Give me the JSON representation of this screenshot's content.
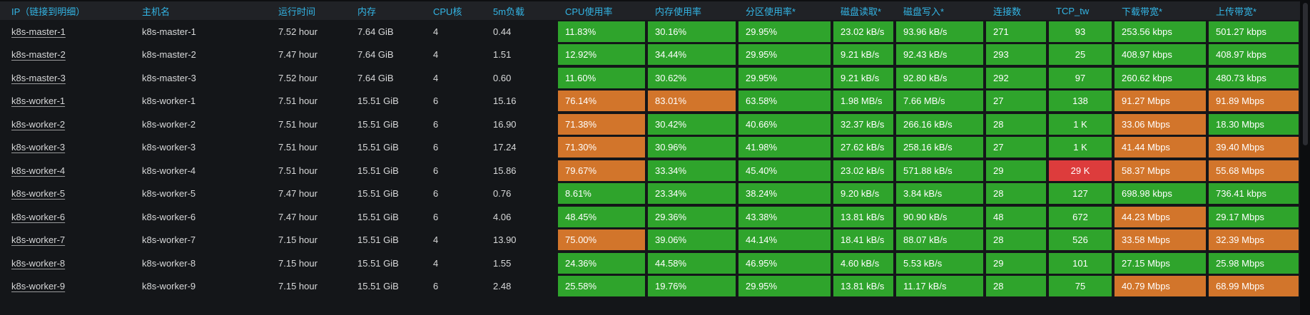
{
  "colors": {
    "green": "#2fa42c",
    "orange": "#d2752b",
    "red": "#dd3c3c",
    "header_text": "#33b5e5",
    "row_bg": "#141619",
    "header_bg": "#202226",
    "cell_text": "#d8d9da",
    "chip_text": "#ffffff"
  },
  "panel": {
    "columns": [
      {
        "key": "ip",
        "label": "IP（链接到明细）",
        "type": "link"
      },
      {
        "key": "hostname",
        "label": "主机名",
        "type": "text"
      },
      {
        "key": "uptime",
        "label": "运行时间",
        "type": "text"
      },
      {
        "key": "memory",
        "label": "内存",
        "type": "text"
      },
      {
        "key": "cpu_cores",
        "label": "CPU核",
        "type": "text"
      },
      {
        "key": "load_5m",
        "label": "5m负载",
        "type": "text"
      },
      {
        "key": "cpu_usage",
        "label": "CPU使用率",
        "type": "chip"
      },
      {
        "key": "mem_usage",
        "label": "内存使用率",
        "type": "chip"
      },
      {
        "key": "partition_usage",
        "label": "分区使用率*",
        "type": "chip"
      },
      {
        "key": "disk_read",
        "label": "磁盘读取*",
        "type": "chip"
      },
      {
        "key": "disk_write",
        "label": "磁盘写入*",
        "type": "chip"
      },
      {
        "key": "connections",
        "label": "连接数",
        "type": "chip"
      },
      {
        "key": "tcp_tw",
        "label": "TCP_tw",
        "type": "chip",
        "align": "center"
      },
      {
        "key": "download_bw",
        "label": "下载带宽*",
        "type": "chip"
      },
      {
        "key": "upload_bw",
        "label": "上传带宽*",
        "type": "chip"
      }
    ],
    "rows": [
      {
        "ip": "k8s-master-1",
        "hostname": "k8s-master-1",
        "uptime": "7.52 hour",
        "memory": "7.64 GiB",
        "cpu_cores": "4",
        "load_5m": "0.44",
        "cpu_usage": {
          "v": "11.83%",
          "c": "green"
        },
        "mem_usage": {
          "v": "30.16%",
          "c": "green"
        },
        "partition_usage": {
          "v": "29.95%",
          "c": "green"
        },
        "disk_read": {
          "v": "23.02 kB/s",
          "c": "green"
        },
        "disk_write": {
          "v": "93.96 kB/s",
          "c": "green"
        },
        "connections": {
          "v": "271",
          "c": "green"
        },
        "tcp_tw": {
          "v": "93",
          "c": "green"
        },
        "download_bw": {
          "v": "253.56 kbps",
          "c": "green"
        },
        "upload_bw": {
          "v": "501.27 kbps",
          "c": "green"
        }
      },
      {
        "ip": "k8s-master-2",
        "hostname": "k8s-master-2",
        "uptime": "7.47 hour",
        "memory": "7.64 GiB",
        "cpu_cores": "4",
        "load_5m": "1.51",
        "cpu_usage": {
          "v": "12.92%",
          "c": "green"
        },
        "mem_usage": {
          "v": "34.44%",
          "c": "green"
        },
        "partition_usage": {
          "v": "29.95%",
          "c": "green"
        },
        "disk_read": {
          "v": "9.21 kB/s",
          "c": "green"
        },
        "disk_write": {
          "v": "92.43 kB/s",
          "c": "green"
        },
        "connections": {
          "v": "293",
          "c": "green"
        },
        "tcp_tw": {
          "v": "25",
          "c": "green"
        },
        "download_bw": {
          "v": "408.97 kbps",
          "c": "green"
        },
        "upload_bw": {
          "v": "408.97 kbps",
          "c": "green"
        }
      },
      {
        "ip": "k8s-master-3",
        "hostname": "k8s-master-3",
        "uptime": "7.52 hour",
        "memory": "7.64 GiB",
        "cpu_cores": "4",
        "load_5m": "0.60",
        "cpu_usage": {
          "v": "11.60%",
          "c": "green"
        },
        "mem_usage": {
          "v": "30.62%",
          "c": "green"
        },
        "partition_usage": {
          "v": "29.95%",
          "c": "green"
        },
        "disk_read": {
          "v": "9.21 kB/s",
          "c": "green"
        },
        "disk_write": {
          "v": "92.80 kB/s",
          "c": "green"
        },
        "connections": {
          "v": "292",
          "c": "green"
        },
        "tcp_tw": {
          "v": "97",
          "c": "green"
        },
        "download_bw": {
          "v": "260.62 kbps",
          "c": "green"
        },
        "upload_bw": {
          "v": "480.73 kbps",
          "c": "green"
        }
      },
      {
        "ip": "k8s-worker-1",
        "hostname": "k8s-worker-1",
        "uptime": "7.51 hour",
        "memory": "15.51 GiB",
        "cpu_cores": "6",
        "load_5m": "15.16",
        "cpu_usage": {
          "v": "76.14%",
          "c": "orange"
        },
        "mem_usage": {
          "v": "83.01%",
          "c": "orange"
        },
        "partition_usage": {
          "v": "63.58%",
          "c": "green"
        },
        "disk_read": {
          "v": "1.98 MB/s",
          "c": "green"
        },
        "disk_write": {
          "v": "7.66 MB/s",
          "c": "green"
        },
        "connections": {
          "v": "27",
          "c": "green"
        },
        "tcp_tw": {
          "v": "138",
          "c": "green"
        },
        "download_bw": {
          "v": "91.27 Mbps",
          "c": "orange"
        },
        "upload_bw": {
          "v": "91.89 Mbps",
          "c": "orange"
        }
      },
      {
        "ip": "k8s-worker-2",
        "hostname": "k8s-worker-2",
        "uptime": "7.51 hour",
        "memory": "15.51 GiB",
        "cpu_cores": "6",
        "load_5m": "16.90",
        "cpu_usage": {
          "v": "71.38%",
          "c": "orange"
        },
        "mem_usage": {
          "v": "30.42%",
          "c": "green"
        },
        "partition_usage": {
          "v": "40.66%",
          "c": "green"
        },
        "disk_read": {
          "v": "32.37 kB/s",
          "c": "green"
        },
        "disk_write": {
          "v": "266.16 kB/s",
          "c": "green"
        },
        "connections": {
          "v": "28",
          "c": "green"
        },
        "tcp_tw": {
          "v": "1 K",
          "c": "green"
        },
        "download_bw": {
          "v": "33.06 Mbps",
          "c": "orange"
        },
        "upload_bw": {
          "v": "18.30 Mbps",
          "c": "green"
        }
      },
      {
        "ip": "k8s-worker-3",
        "hostname": "k8s-worker-3",
        "uptime": "7.51 hour",
        "memory": "15.51 GiB",
        "cpu_cores": "6",
        "load_5m": "17.24",
        "cpu_usage": {
          "v": "71.30%",
          "c": "orange"
        },
        "mem_usage": {
          "v": "30.96%",
          "c": "green"
        },
        "partition_usage": {
          "v": "41.98%",
          "c": "green"
        },
        "disk_read": {
          "v": "27.62 kB/s",
          "c": "green"
        },
        "disk_write": {
          "v": "258.16 kB/s",
          "c": "green"
        },
        "connections": {
          "v": "27",
          "c": "green"
        },
        "tcp_tw": {
          "v": "1 K",
          "c": "green"
        },
        "download_bw": {
          "v": "41.44 Mbps",
          "c": "orange"
        },
        "upload_bw": {
          "v": "39.40 Mbps",
          "c": "orange"
        }
      },
      {
        "ip": "k8s-worker-4",
        "hostname": "k8s-worker-4",
        "uptime": "7.51 hour",
        "memory": "15.51 GiB",
        "cpu_cores": "6",
        "load_5m": "15.86",
        "cpu_usage": {
          "v": "79.67%",
          "c": "orange"
        },
        "mem_usage": {
          "v": "33.34%",
          "c": "green"
        },
        "partition_usage": {
          "v": "45.40%",
          "c": "green"
        },
        "disk_read": {
          "v": "23.02 kB/s",
          "c": "green"
        },
        "disk_write": {
          "v": "571.88 kB/s",
          "c": "green"
        },
        "connections": {
          "v": "29",
          "c": "green"
        },
        "tcp_tw": {
          "v": "29 K",
          "c": "red"
        },
        "download_bw": {
          "v": "58.37 Mbps",
          "c": "orange"
        },
        "upload_bw": {
          "v": "55.68 Mbps",
          "c": "orange"
        }
      },
      {
        "ip": "k8s-worker-5",
        "hostname": "k8s-worker-5",
        "uptime": "7.47 hour",
        "memory": "15.51 GiB",
        "cpu_cores": "6",
        "load_5m": "0.76",
        "cpu_usage": {
          "v": "8.61%",
          "c": "green"
        },
        "mem_usage": {
          "v": "23.34%",
          "c": "green"
        },
        "partition_usage": {
          "v": "38.24%",
          "c": "green"
        },
        "disk_read": {
          "v": "9.20 kB/s",
          "c": "green"
        },
        "disk_write": {
          "v": "3.84 kB/s",
          "c": "green"
        },
        "connections": {
          "v": "28",
          "c": "green"
        },
        "tcp_tw": {
          "v": "127",
          "c": "green"
        },
        "download_bw": {
          "v": "698.98 kbps",
          "c": "green"
        },
        "upload_bw": {
          "v": "736.41 kbps",
          "c": "green"
        }
      },
      {
        "ip": "k8s-worker-6",
        "hostname": "k8s-worker-6",
        "uptime": "7.47 hour",
        "memory": "15.51 GiB",
        "cpu_cores": "6",
        "load_5m": "4.06",
        "cpu_usage": {
          "v": "48.45%",
          "c": "green"
        },
        "mem_usage": {
          "v": "29.36%",
          "c": "green"
        },
        "partition_usage": {
          "v": "43.38%",
          "c": "green"
        },
        "disk_read": {
          "v": "13.81 kB/s",
          "c": "green"
        },
        "disk_write": {
          "v": "90.90 kB/s",
          "c": "green"
        },
        "connections": {
          "v": "48",
          "c": "green"
        },
        "tcp_tw": {
          "v": "672",
          "c": "green"
        },
        "download_bw": {
          "v": "44.23 Mbps",
          "c": "orange"
        },
        "upload_bw": {
          "v": "29.17 Mbps",
          "c": "green"
        }
      },
      {
        "ip": "k8s-worker-7",
        "hostname": "k8s-worker-7",
        "uptime": "7.15 hour",
        "memory": "15.51 GiB",
        "cpu_cores": "4",
        "load_5m": "13.90",
        "cpu_usage": {
          "v": "75.00%",
          "c": "orange"
        },
        "mem_usage": {
          "v": "39.06%",
          "c": "green"
        },
        "partition_usage": {
          "v": "44.14%",
          "c": "green"
        },
        "disk_read": {
          "v": "18.41 kB/s",
          "c": "green"
        },
        "disk_write": {
          "v": "88.07 kB/s",
          "c": "green"
        },
        "connections": {
          "v": "28",
          "c": "green"
        },
        "tcp_tw": {
          "v": "526",
          "c": "green"
        },
        "download_bw": {
          "v": "33.58 Mbps",
          "c": "orange"
        },
        "upload_bw": {
          "v": "32.39 Mbps",
          "c": "orange"
        }
      },
      {
        "ip": "k8s-worker-8",
        "hostname": "k8s-worker-8",
        "uptime": "7.15 hour",
        "memory": "15.51 GiB",
        "cpu_cores": "4",
        "load_5m": "1.55",
        "cpu_usage": {
          "v": "24.36%",
          "c": "green"
        },
        "mem_usage": {
          "v": "44.58%",
          "c": "green"
        },
        "partition_usage": {
          "v": "46.95%",
          "c": "green"
        },
        "disk_read": {
          "v": "4.60 kB/s",
          "c": "green"
        },
        "disk_write": {
          "v": "5.53 kB/s",
          "c": "green"
        },
        "connections": {
          "v": "29",
          "c": "green"
        },
        "tcp_tw": {
          "v": "101",
          "c": "green"
        },
        "download_bw": {
          "v": "27.15 Mbps",
          "c": "green"
        },
        "upload_bw": {
          "v": "25.98 Mbps",
          "c": "green"
        }
      },
      {
        "ip": "k8s-worker-9",
        "hostname": "k8s-worker-9",
        "uptime": "7.15 hour",
        "memory": "15.51 GiB",
        "cpu_cores": "6",
        "load_5m": "2.48",
        "cpu_usage": {
          "v": "25.58%",
          "c": "green"
        },
        "mem_usage": {
          "v": "19.76%",
          "c": "green"
        },
        "partition_usage": {
          "v": "29.95%",
          "c": "green"
        },
        "disk_read": {
          "v": "13.81 kB/s",
          "c": "green"
        },
        "disk_write": {
          "v": "11.17 kB/s",
          "c": "green"
        },
        "connections": {
          "v": "28",
          "c": "green"
        },
        "tcp_tw": {
          "v": "75",
          "c": "green"
        },
        "download_bw": {
          "v": "40.79 Mbps",
          "c": "orange"
        },
        "upload_bw": {
          "v": "68.99 Mbps",
          "c": "orange"
        }
      }
    ]
  }
}
